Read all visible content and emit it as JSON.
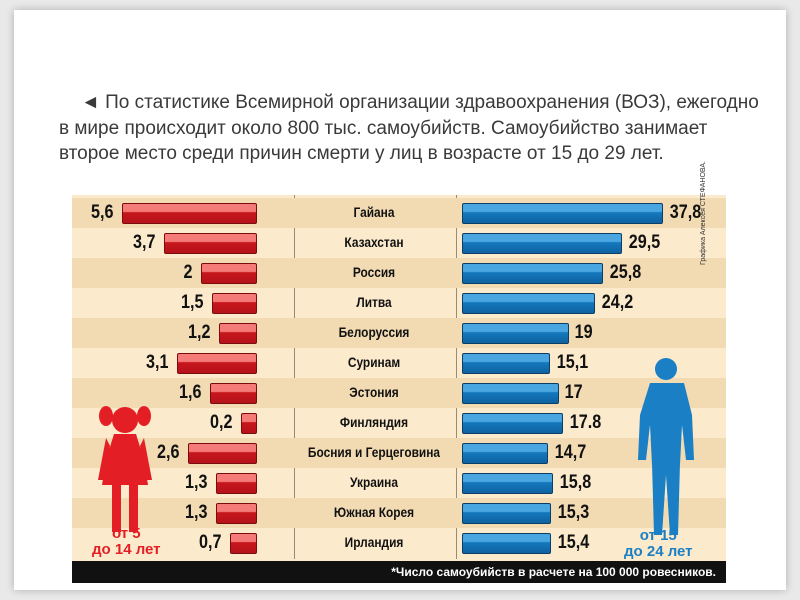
{
  "intro": {
    "marker": "◄",
    "text": "По статистике Всемирной организации здравоохранения (ВОЗ), ежегодно в мире происходит около 800 тыс. самоубийств. Самоубийство занимает второе место среди причин смерти у лиц в возрасте от 15 до 29 лет."
  },
  "chart_data": {
    "type": "bar",
    "orientation": "horizontal-butterfly",
    "categories": [
      "Гайана",
      "Казахстан",
      "Россия",
      "Литва",
      "Белоруссия",
      "Суринам",
      "Эстония",
      "Финляндия",
      "Босния и Герцеговина",
      "Украина",
      "Южная Корея",
      "Ирландия"
    ],
    "series": [
      {
        "name": "от 5 до 14 лет",
        "color": "#d3222a",
        "values": [
          5.6,
          3.7,
          2,
          1.5,
          1.2,
          3.1,
          1.6,
          0.2,
          2.6,
          1.3,
          1.3,
          0.7
        ],
        "labels": [
          "5,6",
          "3,7",
          "2",
          "1,5",
          "1,2",
          "3,1",
          "1,6",
          "0,2",
          "2,6",
          "1,3",
          "1,3",
          "0,7"
        ]
      },
      {
        "name": "от 15 до 24 лет",
        "color": "#1a7fc4",
        "values": [
          37.8,
          29.5,
          25.8,
          24.2,
          19,
          15.1,
          17,
          17.8,
          14.7,
          15.8,
          15.3,
          15.4
        ],
        "labels": [
          "37,8",
          "29,5",
          "25,8",
          "24,2",
          "19",
          "15,1",
          "17",
          "17.8",
          "14,7",
          "15,8",
          "15,3",
          "15,4"
        ]
      }
    ],
    "footnote": "*Число самоубийств в расчете на 100 000 ровесников.",
    "credit": "Графика Алексея СТЕФАНОВА."
  },
  "groups": {
    "child": {
      "line1": "от 5",
      "line2": "до 14 лет",
      "color": "#e31e24"
    },
    "youth": {
      "line1": "от 15",
      "line2": "до 24 лет",
      "color": "#1a7fc4"
    }
  }
}
